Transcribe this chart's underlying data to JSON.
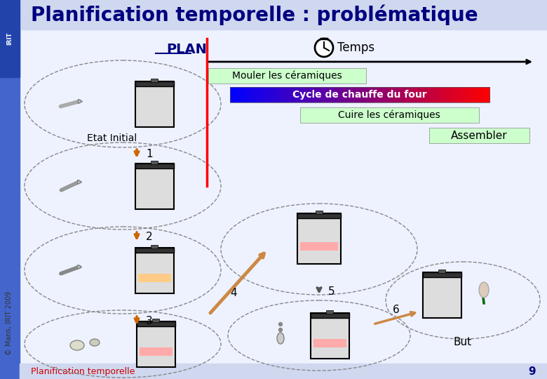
{
  "title": "Planification temporelle : problématique",
  "title_color": "#000080",
  "background_color": "#ffffff",
  "sidebar_color": "#4466cc",
  "plan_label": "PLAN",
  "temps_label": "Temps",
  "mouler_label": "Mouler les céramiques",
  "cycle_label": "Cycle de chauffe du four",
  "cuire_label": "Cuire les céramiques",
  "assembler_label": "Assembler",
  "etat_initial_label": "Etat Initial",
  "but_label": "But",
  "footer_text": "Planification temporelle",
  "footer_page": "9",
  "green_bg": "#ccffcc",
  "cycle_blue": "#3333bb",
  "cycle_red": "#ff0000"
}
